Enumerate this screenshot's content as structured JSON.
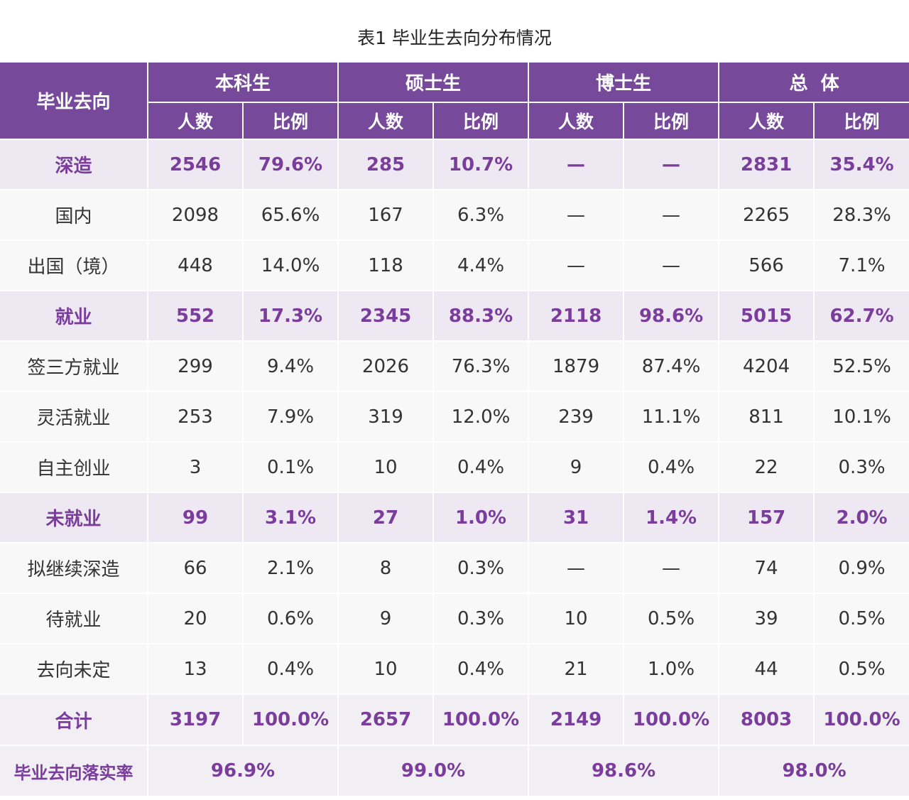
{
  "title": "表1  毕业生去向分布情况",
  "header": {
    "row_label": "毕业去向",
    "groups": [
      "本科生",
      "硕士生",
      "博士生",
      "总  体"
    ],
    "count_label": "人数",
    "ratio_label": "比例"
  },
  "rows": [
    {
      "label": "深造",
      "type": "group",
      "values": [
        "2546",
        "79.6%",
        "285",
        "10.7%",
        "—",
        "—",
        "2831",
        "35.4%"
      ]
    },
    {
      "label": "国内",
      "type": "sub",
      "values": [
        "2098",
        "65.6%",
        "167",
        "6.3%",
        "—",
        "—",
        "2265",
        "28.3%"
      ]
    },
    {
      "label": "出国（境）",
      "type": "sub",
      "values": [
        "448",
        "14.0%",
        "118",
        "4.4%",
        "—",
        "—",
        "566",
        "7.1%"
      ]
    },
    {
      "label": "就业",
      "type": "group",
      "values": [
        "552",
        "17.3%",
        "2345",
        "88.3%",
        "2118",
        "98.6%",
        "5015",
        "62.7%"
      ]
    },
    {
      "label": "签三方就业",
      "type": "sub",
      "values": [
        "299",
        "9.4%",
        "2026",
        "76.3%",
        "1879",
        "87.4%",
        "4204",
        "52.5%"
      ]
    },
    {
      "label": "灵活就业",
      "type": "sub",
      "values": [
        "253",
        "7.9%",
        "319",
        "12.0%",
        "239",
        "11.1%",
        "811",
        "10.1%"
      ]
    },
    {
      "label": "自主创业",
      "type": "sub",
      "values": [
        "3",
        "0.1%",
        "10",
        "0.4%",
        "9",
        "0.4%",
        "22",
        "0.3%"
      ]
    },
    {
      "label": "未就业",
      "type": "group",
      "values": [
        "99",
        "3.1%",
        "27",
        "1.0%",
        "31",
        "1.4%",
        "157",
        "2.0%"
      ]
    },
    {
      "label": "拟继续深造",
      "type": "sub",
      "values": [
        "66",
        "2.1%",
        "8",
        "0.3%",
        "—",
        "—",
        "74",
        "0.9%"
      ]
    },
    {
      "label": "待就业",
      "type": "sub",
      "values": [
        "20",
        "0.6%",
        "9",
        "0.3%",
        "10",
        "0.5%",
        "39",
        "0.5%"
      ]
    },
    {
      "label": "去向未定",
      "type": "sub",
      "values": [
        "13",
        "0.4%",
        "10",
        "0.4%",
        "21",
        "1.0%",
        "44",
        "0.5%"
      ]
    },
    {
      "label": "合计",
      "type": "total",
      "values": [
        "3197",
        "100.0%",
        "2657",
        "100.0%",
        "2149",
        "100.0%",
        "8003",
        "100.0%"
      ]
    }
  ],
  "rate_row": {
    "label": "毕业去向落实率",
    "values": [
      "96.9%",
      "99.0%",
      "98.6%",
      "98.0%"
    ]
  },
  "colors": {
    "header_bg": "#77499a",
    "accent_text": "#7a3d9c",
    "group_bg": "#ede8f1"
  }
}
